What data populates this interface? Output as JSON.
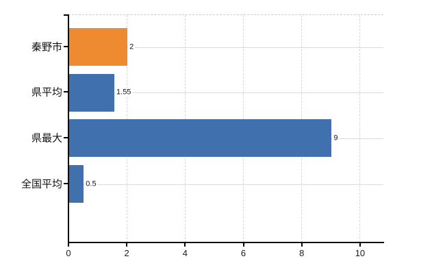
{
  "chart_data": {
    "type": "bar",
    "orientation": "horizontal",
    "title": "",
    "xlabel": "",
    "ylabel": "",
    "categories": [
      "秦野市",
      "県平均",
      "県最大",
      "全国平均"
    ],
    "values": [
      2,
      1.55,
      9,
      0.5
    ],
    "value_labels": [
      "2",
      "1.55",
      "9",
      "0.5"
    ],
    "bar_colors": [
      "#ee8b30",
      "#4170ae",
      "#4170ae",
      "#4170ae"
    ],
    "highlight_color": "#ee8b30",
    "series_color": "#4170ae",
    "x_ticks": [
      "0",
      "2",
      "4",
      "6",
      "8",
      "10"
    ],
    "x_tick_values": [
      0,
      2,
      4,
      6,
      8,
      10
    ],
    "xlim": [
      0,
      10.8
    ],
    "grid": true,
    "grid_color": "#d9d9d9",
    "axis_color": "#000000",
    "legend_position": "none",
    "background_color": "#ffffff"
  }
}
